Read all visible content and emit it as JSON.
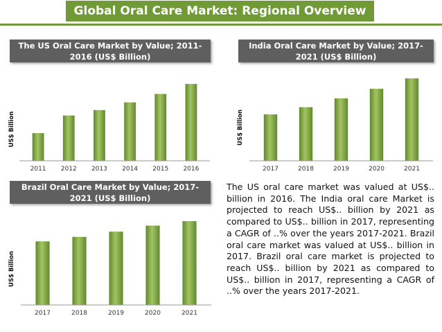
{
  "header": {
    "title": "Global Oral Care Market: Regional Overview"
  },
  "colors": {
    "accent": "#6f9a35",
    "bar_light": "#a4c363",
    "bar_dark": "#5f8a2d",
    "panel_header": "#5f5f5f"
  },
  "charts": {
    "us": {
      "title": "The US Oral Care Market by Value; 2011-2016 (US$ Billion)",
      "ylabel": "US$ Billion"
    },
    "india": {
      "title": "India Oral Care Market by Value; 2017-2021 (US$ Billion)",
      "ylabel": "US$ Billion"
    },
    "brazil": {
      "title": "Brazil Oral Care Market by Value; 2017-2021 (US$ Billion)",
      "ylabel": "US$ Billion"
    }
  },
  "description": "The US oral care market was valued at US$.. billion in 2016. The India oral care Market is projected to reach US$.. billion by 2021 as compared to US$.. billion in 2017, representing a CAGR of ..% over the years 2017-2021. Brazil oral care market was valued at US$.. billion in 2017. Brazil oral care market is projected to reach US$.. billion by 2021 as compared to US$.. billion in 2017, representing a CAGR of ..% over the years 2017-2021.",
  "chart_data": [
    {
      "id": "us",
      "type": "bar",
      "title": "The US Oral Care Market by Value; 2011-2016 (US$ Billion)",
      "xlabel": "",
      "ylabel": "US$ Billion",
      "categories": [
        "2011",
        "2012",
        "2013",
        "2014",
        "2015",
        "2016"
      ],
      "values": [
        36,
        59,
        66,
        76,
        87,
        100
      ],
      "ylim": [
        0,
        110
      ],
      "grid": false,
      "legend": "none"
    },
    {
      "id": "india",
      "type": "bar",
      "title": "India Oral Care Market by Value; 2017-2021 (US$ Billion)",
      "xlabel": "",
      "ylabel": "US$ Billion",
      "categories": [
        "2017",
        "2018",
        "2019",
        "2020",
        "2021"
      ],
      "values": [
        58,
        67,
        78,
        90,
        103
      ],
      "ylim": [
        0,
        110
      ],
      "grid": false,
      "legend": "none"
    },
    {
      "id": "brazil",
      "type": "bar",
      "title": "Brazil Oral Care Market by Value; 2017-2021 (US$ Billion)",
      "xlabel": "",
      "ylabel": "US$ Billion",
      "categories": [
        "2017",
        "2018",
        "2019",
        "2020",
        "2021"
      ],
      "values": [
        85,
        91,
        98,
        106,
        112
      ],
      "ylim": [
        0,
        125
      ],
      "grid": false,
      "legend": "none"
    }
  ]
}
